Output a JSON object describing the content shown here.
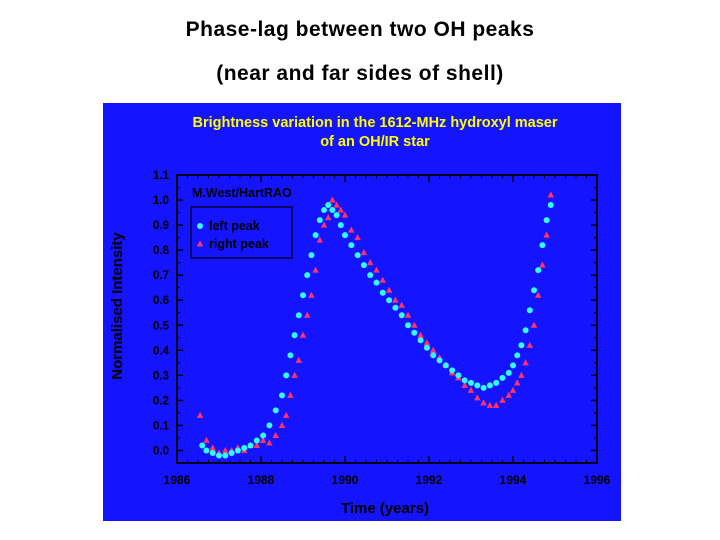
{
  "slide": {
    "title_line1": "Phase-lag between two OH peaks",
    "title_line2": "(near and far sides of shell)"
  },
  "colors": {
    "panel_bg": "#1414ff",
    "title_yellow": "#ffff00",
    "axis_black": "#000000",
    "left_peak": "#33ffff",
    "right_peak": "#ff3366"
  },
  "chart_data": {
    "type": "scatter",
    "title": "Brightness variation in the 1612-MHz hydroxyl maser",
    "subtitle": "of an OH/IR star",
    "annotation": "M.West/HartRAO",
    "xlabel": "Time (years)",
    "ylabel": "Normalised Intensity",
    "xlim": [
      1986,
      1996
    ],
    "ylim": [
      -0.05,
      1.1
    ],
    "x_ticks": [
      1986,
      1988,
      1990,
      1992,
      1994,
      1996
    ],
    "x_tick_labels": [
      "1986",
      "1988",
      "1990",
      "1992",
      "1994",
      "1996"
    ],
    "y_ticks": [
      0.0,
      0.1,
      0.2,
      0.3,
      0.4,
      0.5,
      0.6,
      0.7,
      0.8,
      0.9,
      1.0,
      1.1
    ],
    "y_tick_labels": [
      "0.0",
      "0.1",
      "0.2",
      "0.3",
      "0.4",
      "0.5",
      "0.6",
      "0.7",
      "0.8",
      "0.9",
      "1.0",
      "1.1"
    ],
    "legend_position": "top-left",
    "series": [
      {
        "name": "left peak",
        "marker": "circle",
        "x": [
          1986.6,
          1986.7,
          1986.85,
          1987.0,
          1987.15,
          1987.3,
          1987.45,
          1987.6,
          1987.75,
          1987.9,
          1988.05,
          1988.2,
          1988.35,
          1988.5,
          1988.6,
          1988.7,
          1988.8,
          1988.9,
          1989.0,
          1989.1,
          1989.2,
          1989.3,
          1989.4,
          1989.5,
          1989.6,
          1989.7,
          1989.8,
          1989.9,
          1990.0,
          1990.15,
          1990.3,
          1990.45,
          1990.6,
          1990.75,
          1990.9,
          1991.05,
          1991.2,
          1991.35,
          1991.5,
          1991.65,
          1991.8,
          1991.95,
          1992.1,
          1992.25,
          1992.4,
          1992.55,
          1992.7,
          1992.85,
          1993.0,
          1993.15,
          1993.3,
          1993.45,
          1993.6,
          1993.75,
          1993.9,
          1994.0,
          1994.1,
          1994.2,
          1994.3,
          1994.4,
          1994.5,
          1994.6,
          1994.7,
          1994.8,
          1994.9
        ],
        "y": [
          0.02,
          0.0,
          -0.01,
          -0.02,
          -0.02,
          -0.01,
          0.0,
          0.01,
          0.02,
          0.04,
          0.06,
          0.1,
          0.16,
          0.22,
          0.3,
          0.38,
          0.46,
          0.54,
          0.62,
          0.7,
          0.78,
          0.86,
          0.92,
          0.96,
          0.98,
          0.96,
          0.94,
          0.9,
          0.86,
          0.82,
          0.78,
          0.74,
          0.7,
          0.67,
          0.63,
          0.6,
          0.57,
          0.54,
          0.5,
          0.47,
          0.44,
          0.41,
          0.38,
          0.36,
          0.34,
          0.32,
          0.3,
          0.28,
          0.27,
          0.26,
          0.25,
          0.26,
          0.27,
          0.29,
          0.31,
          0.34,
          0.38,
          0.42,
          0.48,
          0.56,
          0.64,
          0.72,
          0.82,
          0.92,
          0.98
        ]
      },
      {
        "name": "right peak",
        "marker": "triangle",
        "x": [
          1986.55,
          1986.7,
          1986.85,
          1987.0,
          1987.15,
          1987.3,
          1987.45,
          1987.6,
          1987.75,
          1987.9,
          1988.05,
          1988.2,
          1988.35,
          1988.5,
          1988.6,
          1988.7,
          1988.8,
          1988.9,
          1989.0,
          1989.1,
          1989.2,
          1989.3,
          1989.4,
          1989.5,
          1989.6,
          1989.7,
          1989.8,
          1989.9,
          1990.0,
          1990.15,
          1990.3,
          1990.45,
          1990.6,
          1990.75,
          1990.9,
          1991.05,
          1991.2,
          1991.35,
          1991.5,
          1991.65,
          1991.8,
          1991.95,
          1992.1,
          1992.25,
          1992.4,
          1992.55,
          1992.7,
          1992.85,
          1993.0,
          1993.15,
          1993.3,
          1993.45,
          1993.6,
          1993.75,
          1993.9,
          1994.0,
          1994.1,
          1994.2,
          1994.3,
          1994.4,
          1994.5,
          1994.6,
          1994.7,
          1994.8,
          1994.9
        ],
        "y": [
          0.14,
          0.04,
          0.01,
          -0.01,
          0.0,
          0.0,
          0.01,
          0.0,
          0.02,
          0.02,
          0.04,
          0.03,
          0.06,
          0.1,
          0.14,
          0.22,
          0.3,
          0.36,
          0.46,
          0.54,
          0.62,
          0.72,
          0.84,
          0.9,
          0.93,
          1.0,
          0.98,
          0.96,
          0.94,
          0.88,
          0.85,
          0.79,
          0.75,
          0.72,
          0.68,
          0.64,
          0.6,
          0.58,
          0.54,
          0.5,
          0.46,
          0.43,
          0.4,
          0.37,
          0.34,
          0.31,
          0.29,
          0.26,
          0.24,
          0.21,
          0.19,
          0.18,
          0.18,
          0.2,
          0.22,
          0.24,
          0.27,
          0.3,
          0.35,
          0.42,
          0.5,
          0.62,
          0.74,
          0.86,
          1.02
        ]
      }
    ]
  }
}
